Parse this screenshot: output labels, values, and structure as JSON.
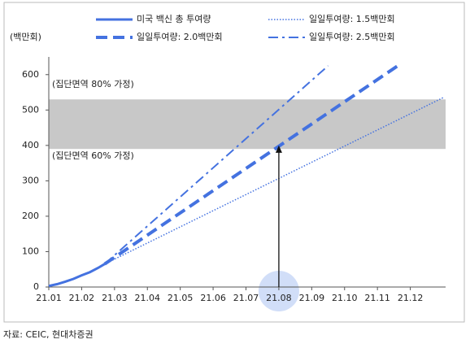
{
  "chart_data": {
    "type": "line",
    "y_unit_label": "(백만회)",
    "source": "자료: CEIC, 현대차증권",
    "xlim": [
      0,
      12
    ],
    "xticks": [
      {
        "value": 0,
        "label": "21.01"
      },
      {
        "value": 1,
        "label": "21.02"
      },
      {
        "value": 2,
        "label": "21.03"
      },
      {
        "value": 3,
        "label": "21.04"
      },
      {
        "value": 4,
        "label": "21.05"
      },
      {
        "value": 5,
        "label": "21.06"
      },
      {
        "value": 6,
        "label": "21.07"
      },
      {
        "value": 7,
        "label": "21.08"
      },
      {
        "value": 8,
        "label": "21.09"
      },
      {
        "value": 9,
        "label": "21.10"
      },
      {
        "value": 10,
        "label": "21.11"
      },
      {
        "value": 11,
        "label": "21.12"
      }
    ],
    "ylim": [
      0,
      650
    ],
    "yticks": [
      0,
      100,
      200,
      300,
      400,
      500,
      600
    ],
    "band": {
      "range": [
        390,
        530
      ],
      "color": "#c8c8c8",
      "labels": [
        "(집단면역 80% 가정)",
        "(집단면역 60% 가정)"
      ]
    },
    "arrow": {
      "x": 7,
      "y": [
        0,
        400
      ]
    },
    "highlight_tick": 7,
    "series": [
      {
        "name": "미국 백신 총 투여량",
        "color": "#4472e0",
        "style": "solid",
        "x": [
          0,
          0.25,
          0.5,
          0.75,
          1,
          1.25,
          1.5,
          1.7
        ],
        "values": [
          3,
          8,
          15,
          23,
          33,
          42,
          54,
          65
        ]
      },
      {
        "name": "일일투여량: 1.5백만회",
        "color": "#4472e0",
        "style": "dotted",
        "x": [
          1.7,
          12
        ],
        "values": [
          65,
          535
        ]
      },
      {
        "name": "일일투여량: 2.0백만회",
        "color": "#4472e0",
        "style": "dashed",
        "x": [
          1.7,
          10.7
        ],
        "values": [
          65,
          630
        ]
      },
      {
        "name": "일일투여량: 2.5백만회",
        "color": "#4472e0",
        "style": "dashdot",
        "x": [
          1.7,
          8.5
        ],
        "values": [
          65,
          625
        ]
      }
    ]
  }
}
